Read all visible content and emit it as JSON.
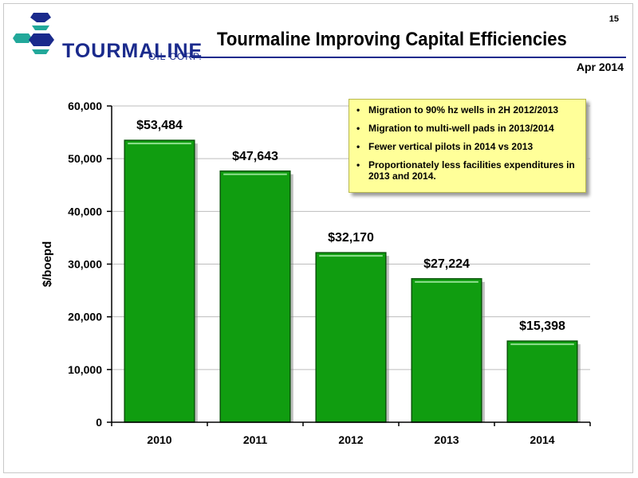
{
  "header": {
    "page_number": "15",
    "title": "Tourmaline Improving Capital Efficiencies",
    "date": "Apr 2014",
    "logo_text": "TOURMALINE",
    "logo_subtext": "OIL CORP."
  },
  "callout": {
    "bullets": [
      "Migration to 90% hz wells in 2H 2012/2013",
      "Migration to multi-well pads in 2013/2014",
      "Fewer vertical pilots in 2014 vs 2013",
      "Proportionately less facilities expenditures in 2013 and 2014."
    ]
  },
  "colors": {
    "bar_fill": "#109d10",
    "bar_edge": "#0a560a",
    "bar_highlight": "#8fe08f",
    "logo_blue": "#1a2a8c",
    "logo_teal": "#22a89a",
    "callout_bg": "#ffff99"
  },
  "chart_data": {
    "type": "bar",
    "title": "",
    "xlabel": "",
    "ylabel": "$/boepd",
    "categories": [
      "2010",
      "2011",
      "2012",
      "2013",
      "2014"
    ],
    "values": [
      53484,
      47643,
      32170,
      27224,
      15398
    ],
    "data_labels": [
      "$53,484",
      "$47,643",
      "$32,170",
      "$27,224",
      "$15,398"
    ],
    "yticks": [
      0,
      10000,
      20000,
      30000,
      40000,
      50000,
      60000
    ],
    "ytick_labels": [
      "0",
      "10,000",
      "20,000",
      "30,000",
      "40,000",
      "50,000",
      "60,000"
    ],
    "ylim": [
      0,
      60000
    ],
    "grid": true,
    "legend": "none"
  }
}
